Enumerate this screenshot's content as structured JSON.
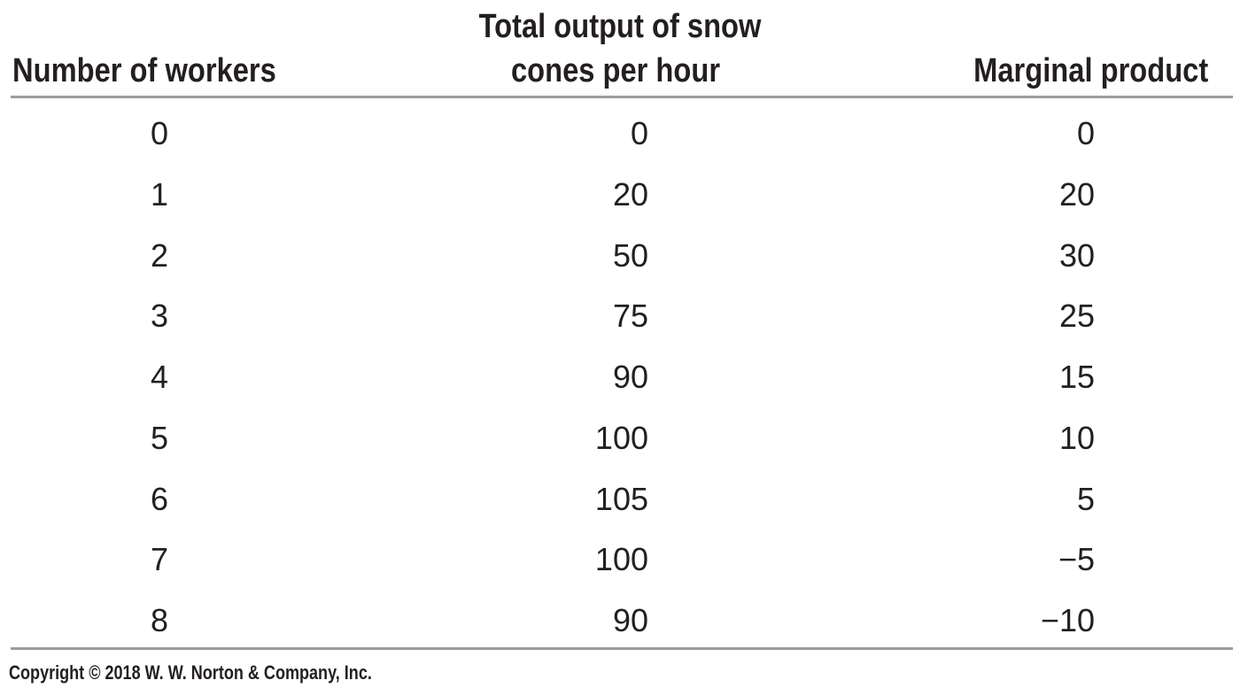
{
  "table": {
    "headers": {
      "workers": "Number of workers",
      "output_line1": "Total output of snow",
      "output_line2": "cones per hour",
      "marginal": "Marginal product"
    },
    "rows": [
      {
        "workers": "0",
        "output": "0",
        "marginal": "0"
      },
      {
        "workers": "1",
        "output": "20",
        "marginal": "20"
      },
      {
        "workers": "2",
        "output": "50",
        "marginal": "30"
      },
      {
        "workers": "3",
        "output": "75",
        "marginal": "25"
      },
      {
        "workers": "4",
        "output": "90",
        "marginal": "15"
      },
      {
        "workers": "5",
        "output": "100",
        "marginal": "10"
      },
      {
        "workers": "6",
        "output": "105",
        "marginal": "5"
      },
      {
        "workers": "7",
        "output": "100",
        "marginal": "−5"
      },
      {
        "workers": "8",
        "output": "90",
        "marginal": "−10"
      }
    ]
  },
  "footer": {
    "copyright": "Copyright © 2018 W. W. Norton & Company, Inc."
  },
  "colors": {
    "text": "#231f20",
    "rule": "#9c9c9c",
    "background": "#ffffff"
  }
}
